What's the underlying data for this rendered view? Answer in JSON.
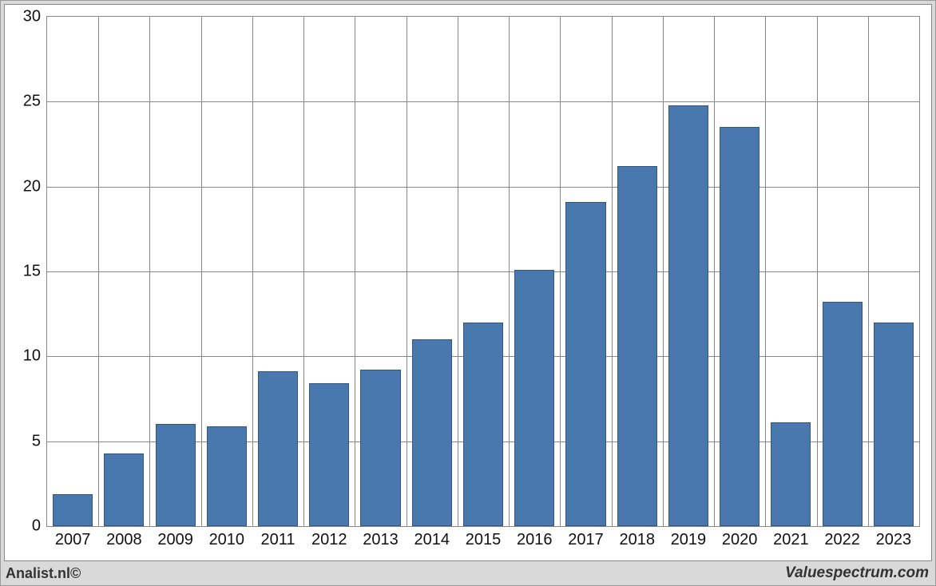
{
  "chart": {
    "type": "bar",
    "background_color": "#ffffff",
    "outer_background_color": "#d9d9d9",
    "border_color": "#888888",
    "bar_color": "#4878ad",
    "bar_border_color": "#34567c",
    "grid_color": "#888888",
    "text_color": "#111111",
    "axis_fontsize": 20,
    "ylim": [
      0,
      30
    ],
    "ytick_step": 5,
    "yticks": [
      0,
      5,
      10,
      15,
      20,
      25,
      30
    ],
    "categories": [
      "2007",
      "2008",
      "2009",
      "2010",
      "2011",
      "2012",
      "2013",
      "2014",
      "2015",
      "2016",
      "2017",
      "2018",
      "2019",
      "2020",
      "2021",
      "2022",
      "2023"
    ],
    "values": [
      1.9,
      4.3,
      6.0,
      5.9,
      9.1,
      8.4,
      9.2,
      11.0,
      12.0,
      15.1,
      19.1,
      21.2,
      24.8,
      23.5,
      6.1,
      13.2,
      12.0
    ],
    "bar_width_ratio": 0.78
  },
  "footer": {
    "left": "Analist.nl©",
    "right": "Valuespectrum.com"
  }
}
